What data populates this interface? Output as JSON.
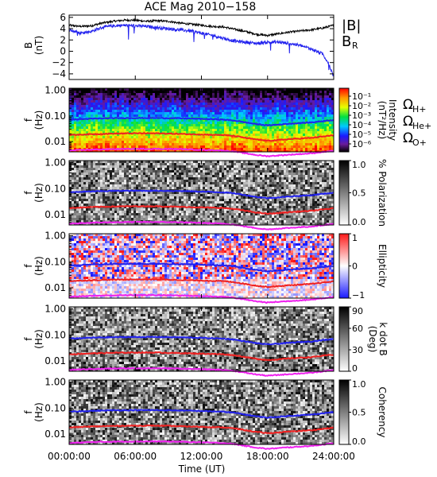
{
  "title": "ACE Mag 2010−158",
  "xaxis": {
    "label": "Time (UT)",
    "ticks": [
      "00:00:00",
      "06:00:00",
      "12:00:00",
      "18:00:00",
      "24:00:00"
    ],
    "hours": [
      0,
      6,
      12,
      18,
      24
    ]
  },
  "chart_data": [
    {
      "type": "line",
      "name": "magnetic-field",
      "ylabel": "B",
      "yunit": "(nT)",
      "ylim": [
        -5,
        6.4
      ],
      "yticks": [
        -4,
        -2,
        0,
        2,
        4,
        6
      ],
      "legend": [
        {
          "label": "|B|",
          "color": "#000000"
        },
        {
          "label": "B",
          "sub": "R",
          "color": "#2222ee"
        }
      ],
      "series": [
        {
          "name": "|B|",
          "color": "#000000",
          "x_hours": [
            0,
            1,
            2,
            3,
            4,
            5,
            6,
            7,
            8,
            9,
            10,
            11,
            12,
            13,
            14,
            15,
            16,
            17,
            18,
            19,
            20,
            21,
            22,
            23,
            24
          ],
          "values": [
            4.6,
            4.4,
            4.5,
            5.0,
            5.3,
            5.5,
            5.5,
            5.3,
            5.4,
            5.3,
            5.0,
            4.8,
            4.6,
            4.4,
            4.3,
            3.9,
            3.5,
            3.0,
            2.8,
            3.1,
            3.4,
            3.6,
            3.8,
            4.1,
            4.6
          ]
        },
        {
          "name": "BR",
          "color": "#2222ee",
          "x_hours": [
            0,
            1,
            2,
            3,
            4,
            5,
            6,
            7,
            8,
            9,
            10,
            11,
            12,
            13,
            14,
            15,
            16,
            17,
            18,
            19,
            20,
            21,
            22,
            23,
            23.5,
            24
          ],
          "values": [
            3.8,
            3.2,
            3.5,
            4.2,
            4.5,
            4.6,
            4.5,
            4.4,
            4.2,
            4.0,
            3.8,
            3.6,
            3.2,
            2.8,
            2.3,
            1.8,
            1.6,
            1.4,
            1.6,
            1.6,
            1.4,
            1.0,
            0.4,
            -0.5,
            -2.0,
            -4.5
          ]
        }
      ]
    },
    {
      "type": "heatmap",
      "name": "intensity",
      "ylabel": "f",
      "yunit": "(Hz)",
      "ylim": [
        0.004,
        1.2
      ],
      "yticks": [
        "1.00",
        "0.10",
        "0.01"
      ],
      "colorbar": {
        "label": "Intensity",
        "unit": "(nT²/Hz)",
        "ticks": [
          "10⁻¹",
          "10⁻²",
          "10⁻³",
          "10⁻⁴",
          "10⁻⁵",
          "10⁻⁶"
        ]
      },
      "gyrofrequency_legend": [
        {
          "label": "Ω",
          "sub": "H+",
          "color": "#2222ee"
        },
        {
          "label": "Ω",
          "sub": "He+",
          "color": "#ee2222"
        },
        {
          "label": "Ω",
          "sub": "O+",
          "color": "#ee22ee"
        }
      ]
    },
    {
      "type": "heatmap",
      "name": "polarization",
      "ylabel": "f",
      "yunit": "(Hz)",
      "ylim": [
        0.004,
        1.2
      ],
      "yticks": [
        "1.00",
        "0.10",
        "0.01"
      ],
      "colorbar": {
        "label": "% Polarization",
        "ticks": [
          "1.0",
          "0.5",
          "0.0"
        ]
      }
    },
    {
      "type": "heatmap",
      "name": "ellipticity",
      "ylabel": "f",
      "yunit": "(Hz)",
      "ylim": [
        0.004,
        1.2
      ],
      "yticks": [
        "1.00",
        "0.10",
        "0.01"
      ],
      "colorbar": {
        "label": "Ellipticity",
        "ticks": [
          "1",
          "0",
          "−1"
        ]
      }
    },
    {
      "type": "heatmap",
      "name": "k-dot-b",
      "ylabel": "f",
      "yunit": "(Hz)",
      "ylim": [
        0.004,
        1.2
      ],
      "yticks": [
        "1.00",
        "0.10",
        "0.01"
      ],
      "colorbar": {
        "label": "k dot B",
        "unit": "(Deg)",
        "ticks": [
          "90",
          "60",
          "30",
          "0"
        ]
      }
    },
    {
      "type": "heatmap",
      "name": "coherency",
      "ylabel": "f",
      "yunit": "(Hz)",
      "ylim": [
        0.004,
        1.2
      ],
      "yticks": [
        "1.00",
        "0.10",
        "0.01"
      ],
      "colorbar": {
        "label": "Coherency",
        "ticks": [
          "1.0",
          "0.5",
          "0.0"
        ]
      }
    }
  ],
  "gyrofrequencies": {
    "x_hours": [
      0,
      2,
      4,
      6,
      8,
      10,
      12,
      14,
      15,
      16,
      17,
      18,
      19,
      20,
      22,
      24
    ],
    "H+": [
      0.072,
      0.078,
      0.082,
      0.083,
      0.083,
      0.081,
      0.077,
      0.072,
      0.066,
      0.056,
      0.048,
      0.043,
      0.046,
      0.05,
      0.056,
      0.07
    ],
    "He+": [
      0.018,
      0.0195,
      0.0205,
      0.021,
      0.021,
      0.02,
      0.019,
      0.018,
      0.0165,
      0.014,
      0.012,
      0.0108,
      0.0115,
      0.0125,
      0.014,
      0.0175
    ],
    "O+": [
      0.0045,
      0.0049,
      0.0051,
      0.0052,
      0.0052,
      0.0051,
      0.0048,
      0.0045,
      0.0041,
      0.0035,
      0.003,
      0.0027,
      0.0029,
      0.0031,
      0.0035,
      0.0044
    ]
  },
  "colors": {
    "h_plus": "#2222ee",
    "he_plus": "#ee2222",
    "o_plus": "#ee22ee"
  }
}
